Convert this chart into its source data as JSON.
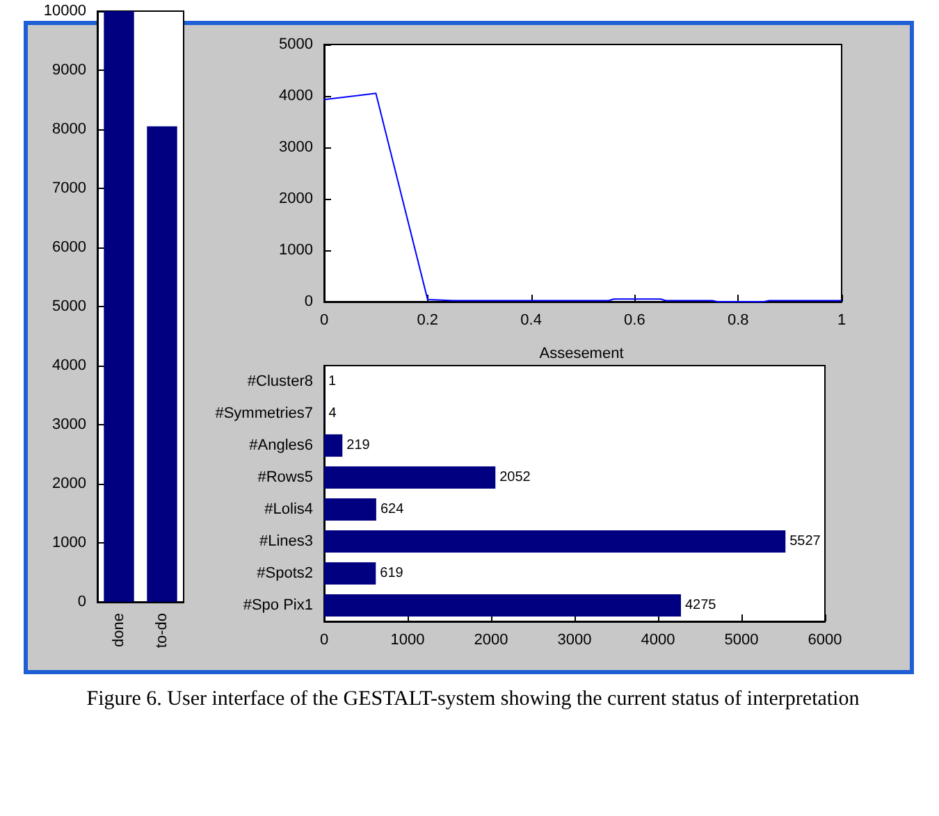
{
  "chart_data": [
    {
      "type": "bar",
      "categories": [
        "done",
        "to-do"
      ],
      "values": [
        10000,
        8050
      ],
      "color": "#000080",
      "ylim": [
        0,
        10000
      ],
      "yticks": [
        0,
        1000,
        2000,
        3000,
        4000,
        5000,
        6000,
        7000,
        8000,
        9000,
        10000
      ],
      "grid": false
    },
    {
      "type": "line",
      "x": [
        0,
        0.1,
        0.2,
        0.25,
        0.55,
        0.56,
        0.65,
        0.66,
        0.75,
        0.76,
        0.85,
        0.86,
        1
      ],
      "values": [
        3930,
        4050,
        40,
        20,
        20,
        50,
        50,
        20,
        20,
        0,
        0,
        20,
        20
      ],
      "color": "#0000ff",
      "xlim": [
        0,
        1
      ],
      "xticks": [
        0,
        0.2,
        0.4,
        0.6,
        0.8,
        1
      ],
      "ylim": [
        0,
        5000
      ],
      "yticks": [
        0,
        1000,
        2000,
        3000,
        4000,
        5000
      ],
      "grid": false,
      "marker": "none",
      "line_style": "solid"
    },
    {
      "type": "bar",
      "orientation": "horizontal",
      "title": "Assesement",
      "categories": [
        "#Cluster8",
        "#Symmetries7",
        "#Angles6",
        "#Rows5",
        "#Lolis4",
        "#Lines3",
        "#Spots2",
        "#Spo Pix1"
      ],
      "values": [
        1,
        4,
        219,
        2052,
        624,
        5527,
        619,
        4275
      ],
      "color": "#000080",
      "xlim": [
        0,
        6000
      ],
      "xticks": [
        0,
        1000,
        2000,
        3000,
        4000,
        5000,
        6000
      ],
      "grid": false,
      "data_labels": true,
      "annotations": [
        "Figure 6.    User interface of the GESTALT-system showing the current status of interpretation"
      ]
    }
  ]
}
